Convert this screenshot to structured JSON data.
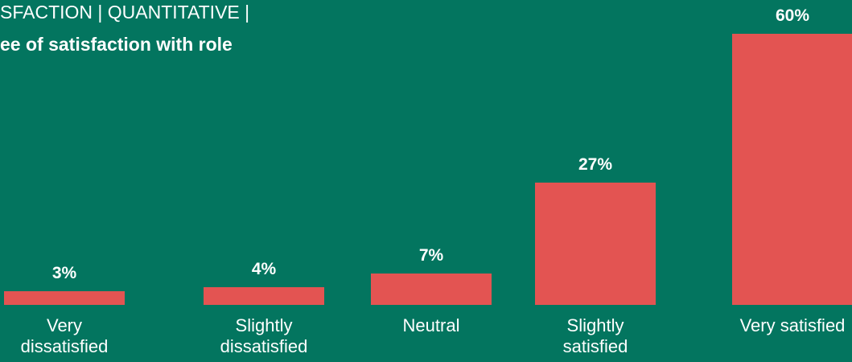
{
  "chart_data": {
    "type": "bar",
    "title": "SFACTION | QUANTITATIVE |",
    "subtitle": "ee of satisfaction with role",
    "categories": [
      "Very dissatisfied",
      "Slightly dissatisfied",
      "Neutral",
      "Slightly satisfied",
      "Very satisfied"
    ],
    "values": [
      3,
      4,
      7,
      27,
      60
    ],
    "value_labels": [
      "3%",
      "4%",
      "7%",
      "27%",
      "60%"
    ],
    "color": "#e35452"
  }
}
